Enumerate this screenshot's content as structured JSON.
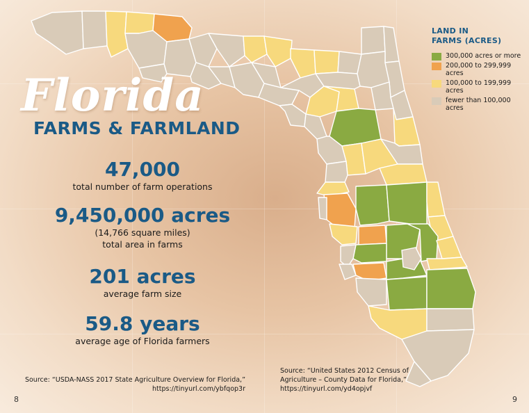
{
  "title": {
    "script": "Florida",
    "subtitle": "FARMS & FARMLAND"
  },
  "stats": [
    {
      "value": "47,000",
      "label": "total number of farm operations"
    },
    {
      "value": "9,450,000 acres",
      "sublabel": "(14,766 square miles)",
      "label": "total area in farms"
    },
    {
      "value": "201 acres",
      "label": "average farm size"
    },
    {
      "value": "59.8 years",
      "label": "average age of Florida farmers"
    }
  ],
  "legend": {
    "title_line1": "LAND IN",
    "title_line2": "FARMS (ACRES)",
    "items": [
      {
        "label": "300,000 acres or more",
        "color": "#8aaa42"
      },
      {
        "label": "200,000 to 299,999 acres",
        "color": "#f0a24e"
      },
      {
        "label": "100,000 to 199,999 acres",
        "color": "#f7d97d"
      },
      {
        "label": "fewer than 100,000 acres",
        "color": "#d9cbb8"
      }
    ]
  },
  "sources": {
    "left_line1": "Source: “USDA-NASS 2017 State Agriculture Overview for Florida,”",
    "left_line2": "https://tinyurl.com/ybfqop3r",
    "right_line1": "Source: “United States 2012 Census of",
    "right_line2": "Agriculture – County Data for Florida,”",
    "right_line3": "https://tinyurl.com/yd4opjvf"
  },
  "page_numbers": {
    "left": "8",
    "right": "9"
  },
  "map_colors": {
    "other": "#d9cbb8",
    "mid": "#f7d97d",
    "high": "#f0a24e",
    "top": "#8aaa42",
    "border": "#ffffff"
  }
}
